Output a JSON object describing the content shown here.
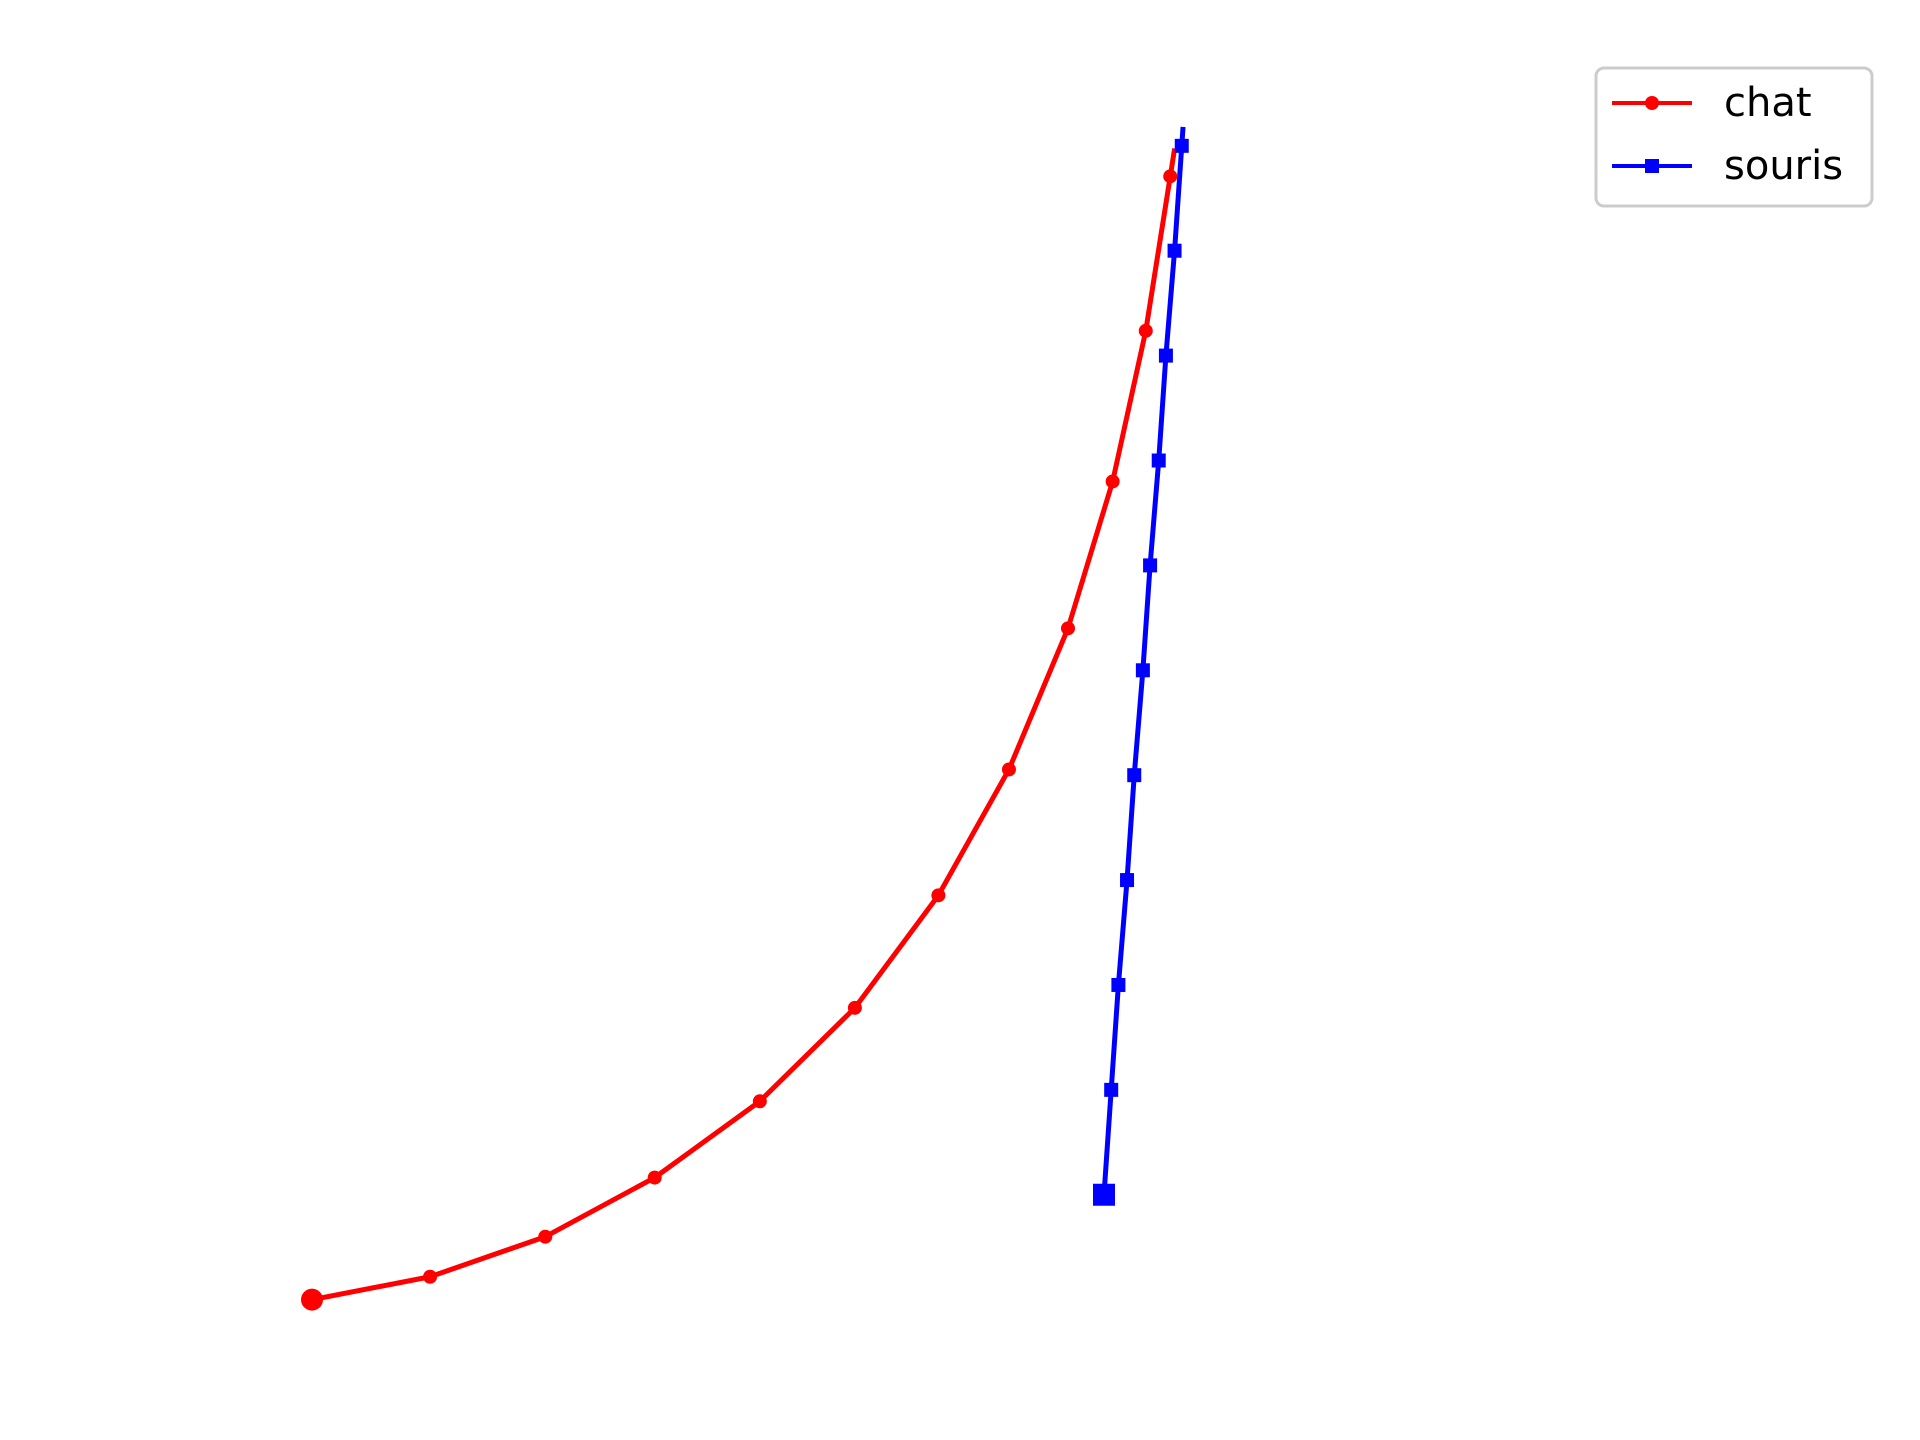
{
  "chart_data": {
    "type": "line",
    "title": "",
    "xlabel": "",
    "ylabel": "",
    "axes_visible": false,
    "grid": false,
    "legend_position": "top-right",
    "xlim": [
      -0.5,
      9.5
    ],
    "ylim": [
      -0.5,
      6.5
    ],
    "series": [
      {
        "name": "chat",
        "color": "#ff0000",
        "marker": "circle",
        "x": [
          0,
          0.82,
          1.62,
          2.38,
          3.11,
          3.77,
          4.35,
          4.84,
          5.25,
          5.56,
          5.79,
          5.96
        ],
        "y": [
          0,
          0.12,
          0.33,
          0.64,
          1.04,
          1.53,
          2.12,
          2.78,
          3.52,
          4.29,
          5.08,
          5.89
        ],
        "start": {
          "x": 0,
          "y": 0
        }
      },
      {
        "name": "souris",
        "color": "#0000ff",
        "marker": "square",
        "x": [
          5.5,
          5.55,
          5.6,
          5.66,
          5.71,
          5.77,
          5.82,
          5.88,
          5.93,
          5.99,
          6.04
        ],
        "y": [
          0.55,
          1.1,
          1.65,
          2.2,
          2.75,
          3.3,
          3.85,
          4.4,
          4.95,
          5.5,
          6.05
        ],
        "start": {
          "x": 5.5,
          "y": 0.55
        }
      }
    ]
  }
}
